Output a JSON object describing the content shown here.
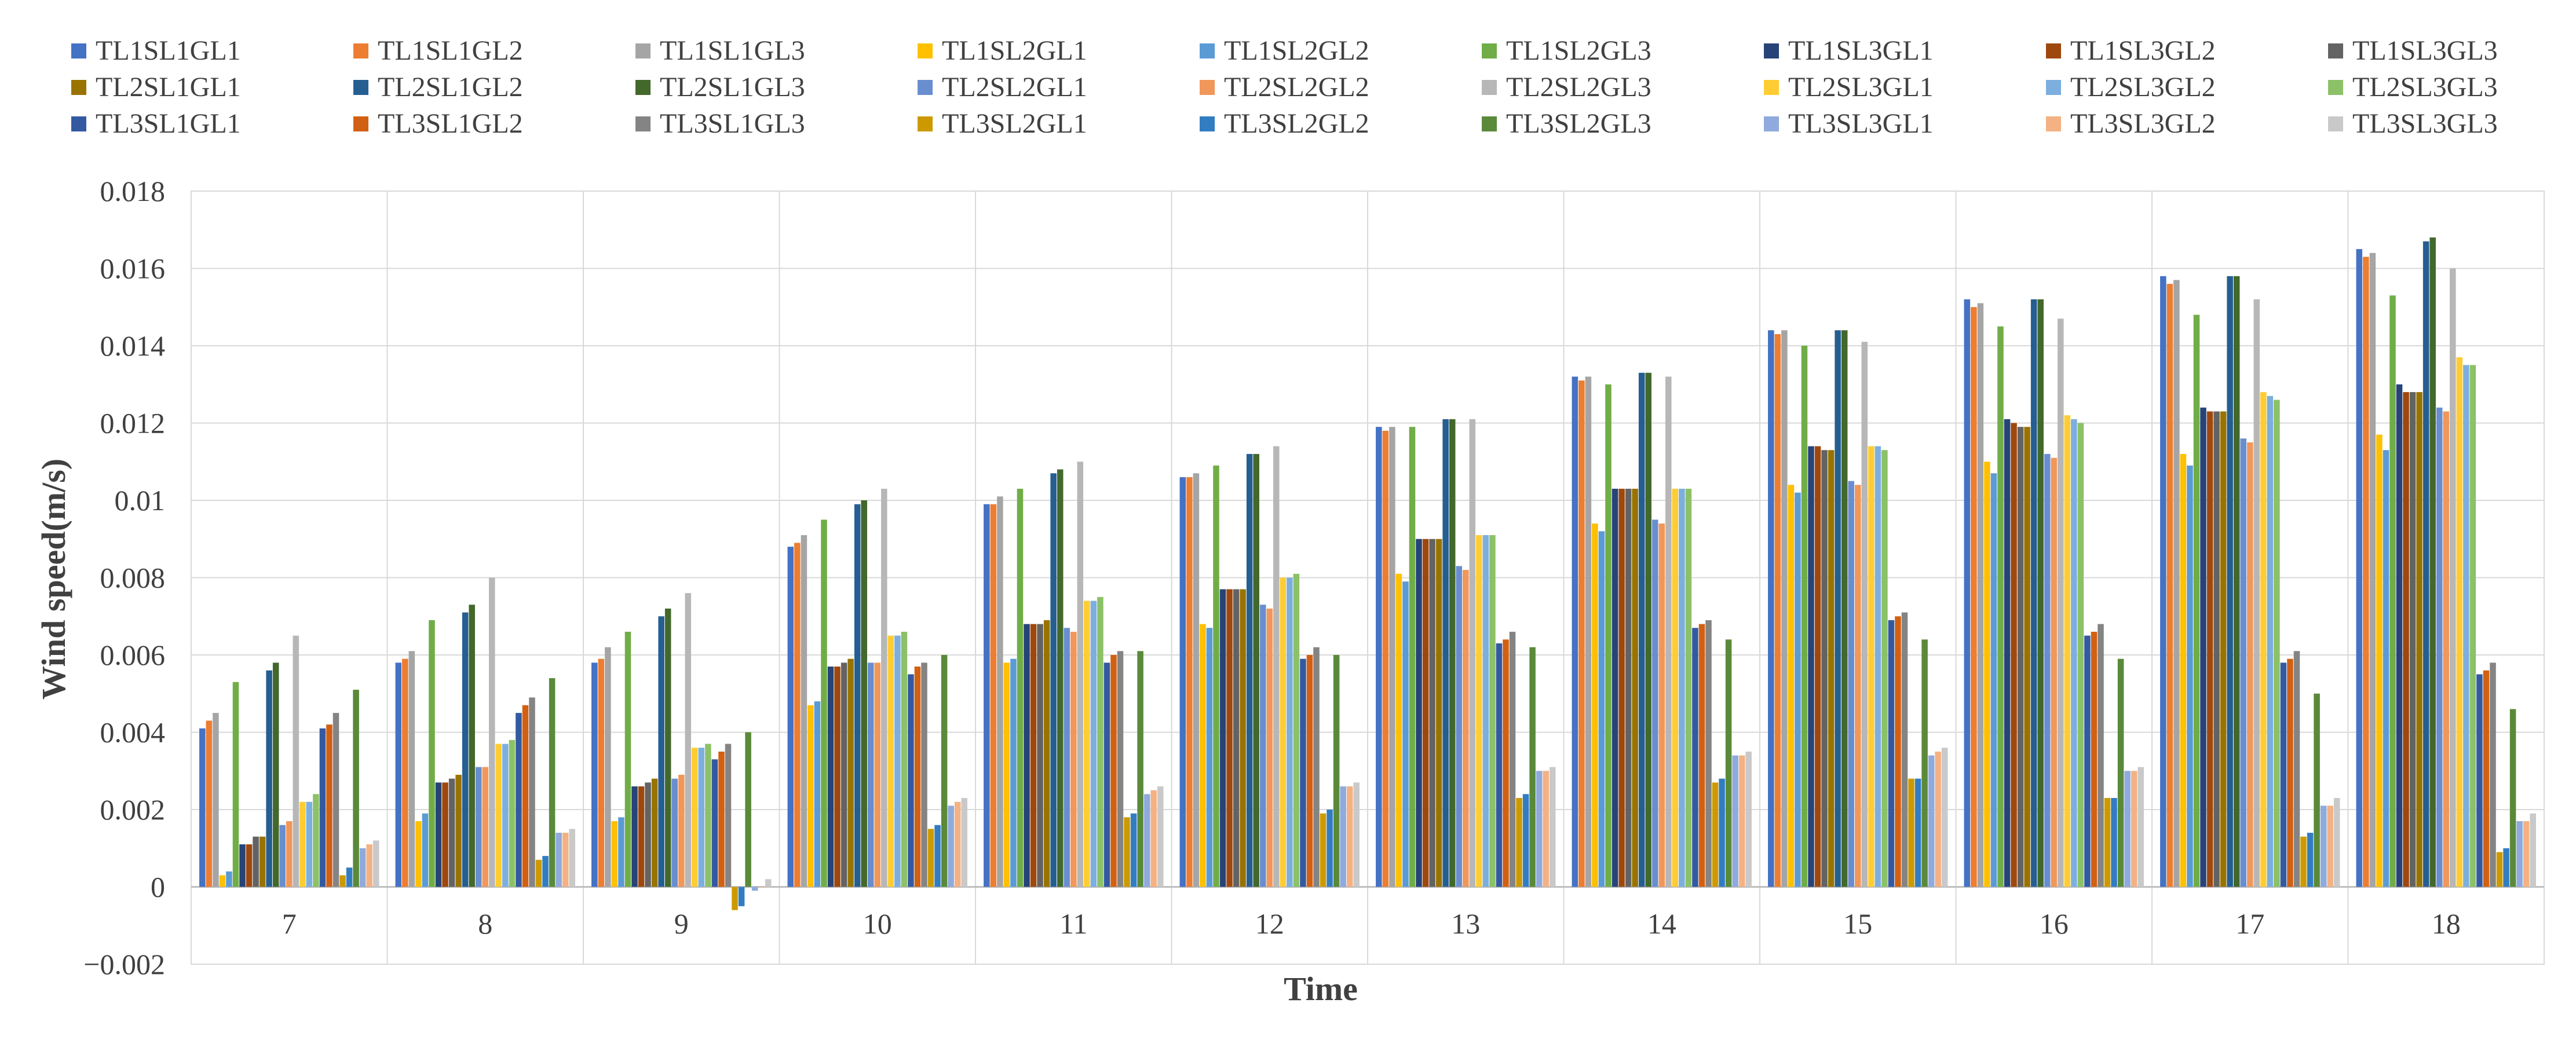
{
  "chart_data": {
    "type": "bar",
    "title": "",
    "xlabel": "Time",
    "ylabel": "Wind speed(m/s)",
    "ylim": [
      -0.002,
      0.018
    ],
    "yticks": [
      -0.002,
      0,
      0.002,
      0.004,
      0.006,
      0.008,
      0.01,
      0.012,
      0.014,
      0.016,
      0.018
    ],
    "ytick_labels": [
      "−0.002",
      "0",
      "0.002",
      "0.004",
      "0.006",
      "0.008",
      "0.01",
      "0.012",
      "0.014",
      "0.016",
      "0.018"
    ],
    "grid": true,
    "legend_position": "top",
    "categories": [
      "7",
      "8",
      "9",
      "10",
      "11",
      "12",
      "13",
      "14",
      "15",
      "16",
      "17",
      "18"
    ],
    "series": [
      {
        "name": "TL1SL1GL1",
        "color": "#4472C4",
        "values": [
          0.0041,
          0.0058,
          0.0058,
          0.0088,
          0.0099,
          0.0106,
          0.0119,
          0.0132,
          0.0144,
          0.0152,
          0.0158,
          0.0165
        ]
      },
      {
        "name": "TL1SL1GL2",
        "color": "#ED7D31",
        "values": [
          0.0043,
          0.0059,
          0.0059,
          0.0089,
          0.0099,
          0.0106,
          0.0118,
          0.0131,
          0.0143,
          0.015,
          0.0156,
          0.0163
        ]
      },
      {
        "name": "TL1SL1GL3",
        "color": "#A5A5A5",
        "values": [
          0.0045,
          0.0061,
          0.0062,
          0.0091,
          0.0101,
          0.0107,
          0.0119,
          0.0132,
          0.0144,
          0.0151,
          0.0157,
          0.0164
        ]
      },
      {
        "name": "TL1SL2GL1",
        "color": "#FFC000",
        "values": [
          0.0003,
          0.0017,
          0.0017,
          0.0047,
          0.0058,
          0.0068,
          0.0081,
          0.0094,
          0.0104,
          0.011,
          0.0112,
          0.0117
        ]
      },
      {
        "name": "TL1SL2GL2",
        "color": "#5B9BD5",
        "values": [
          0.0004,
          0.0019,
          0.0018,
          0.0048,
          0.0059,
          0.0067,
          0.0079,
          0.0092,
          0.0102,
          0.0107,
          0.0109,
          0.0113
        ]
      },
      {
        "name": "TL1SL2GL3",
        "color": "#70AD47",
        "values": [
          0.0053,
          0.0069,
          0.0066,
          0.0095,
          0.0103,
          0.0109,
          0.0119,
          0.013,
          0.014,
          0.0145,
          0.0148,
          0.0153
        ]
      },
      {
        "name": "TL1SL3GL1",
        "color": "#264478",
        "values": [
          0.0011,
          0.0027,
          0.0026,
          0.0057,
          0.0068,
          0.0077,
          0.009,
          0.0103,
          0.0114,
          0.0121,
          0.0124,
          0.013
        ]
      },
      {
        "name": "TL1SL3GL2",
        "color": "#9E480E",
        "values": [
          0.0011,
          0.0027,
          0.0026,
          0.0057,
          0.0068,
          0.0077,
          0.009,
          0.0103,
          0.0114,
          0.012,
          0.0123,
          0.0128
        ]
      },
      {
        "name": "TL1SL3GL3",
        "color": "#636363",
        "values": [
          0.0013,
          0.0028,
          0.0027,
          0.0058,
          0.0068,
          0.0077,
          0.009,
          0.0103,
          0.0113,
          0.0119,
          0.0123,
          0.0128
        ]
      },
      {
        "name": "TL2SL1GL1",
        "color": "#997300",
        "values": [
          0.0013,
          0.0029,
          0.0028,
          0.0059,
          0.0069,
          0.0077,
          0.009,
          0.0103,
          0.0113,
          0.0119,
          0.0123,
          0.0128
        ]
      },
      {
        "name": "TL2SL1GL2",
        "color": "#255E91",
        "values": [
          0.0056,
          0.0071,
          0.007,
          0.0099,
          0.0107,
          0.0112,
          0.0121,
          0.0133,
          0.0144,
          0.0152,
          0.0158,
          0.0167
        ]
      },
      {
        "name": "TL2SL1GL3",
        "color": "#43682B",
        "values": [
          0.0058,
          0.0073,
          0.0072,
          0.01,
          0.0108,
          0.0112,
          0.0121,
          0.0133,
          0.0144,
          0.0152,
          0.0158,
          0.0168
        ]
      },
      {
        "name": "TL2SL2GL1",
        "color": "#698ED0",
        "values": [
          0.0016,
          0.0031,
          0.0028,
          0.0058,
          0.0067,
          0.0073,
          0.0083,
          0.0095,
          0.0105,
          0.0112,
          0.0116,
          0.0124
        ]
      },
      {
        "name": "TL2SL2GL2",
        "color": "#F1975A",
        "values": [
          0.0017,
          0.0031,
          0.0029,
          0.0058,
          0.0066,
          0.0072,
          0.0082,
          0.0094,
          0.0104,
          0.0111,
          0.0115,
          0.0123
        ]
      },
      {
        "name": "TL2SL2GL3",
        "color": "#B7B7B7",
        "values": [
          0.0065,
          0.008,
          0.0076,
          0.0103,
          0.011,
          0.0114,
          0.0121,
          0.0132,
          0.0141,
          0.0147,
          0.0152,
          0.016
        ]
      },
      {
        "name": "TL2SL3GL1",
        "color": "#FFCD33",
        "values": [
          0.0022,
          0.0037,
          0.0036,
          0.0065,
          0.0074,
          0.008,
          0.0091,
          0.0103,
          0.0114,
          0.0122,
          0.0128,
          0.0137
        ]
      },
      {
        "name": "TL2SL3GL2",
        "color": "#7CAFDD",
        "values": [
          0.0022,
          0.0037,
          0.0036,
          0.0065,
          0.0074,
          0.008,
          0.0091,
          0.0103,
          0.0114,
          0.0121,
          0.0127,
          0.0135
        ]
      },
      {
        "name": "TL2SL3GL3",
        "color": "#8CC168",
        "values": [
          0.0024,
          0.0038,
          0.0037,
          0.0066,
          0.0075,
          0.0081,
          0.0091,
          0.0103,
          0.0113,
          0.012,
          0.0126,
          0.0135
        ]
      },
      {
        "name": "TL3SL1GL1",
        "color": "#335AA1",
        "values": [
          0.0041,
          0.0045,
          0.0033,
          0.0055,
          0.0058,
          0.0059,
          0.0063,
          0.0067,
          0.0069,
          0.0065,
          0.0058,
          0.0055
        ]
      },
      {
        "name": "TL3SL1GL2",
        "color": "#D26012",
        "values": [
          0.0042,
          0.0047,
          0.0035,
          0.0057,
          0.006,
          0.006,
          0.0064,
          0.0068,
          0.007,
          0.0066,
          0.0059,
          0.0056
        ]
      },
      {
        "name": "TL3SL1GL3",
        "color": "#848484",
        "values": [
          0.0045,
          0.0049,
          0.0037,
          0.0058,
          0.0061,
          0.0062,
          0.0066,
          0.0069,
          0.0071,
          0.0068,
          0.0061,
          0.0058
        ]
      },
      {
        "name": "TL3SL2GL1",
        "color": "#CC9A00",
        "values": [
          0.0003,
          0.0007,
          -0.0006,
          0.0015,
          0.0018,
          0.0019,
          0.0023,
          0.0027,
          0.0028,
          0.0023,
          0.0013,
          0.0009
        ]
      },
      {
        "name": "TL3SL2GL2",
        "color": "#327DC2",
        "values": [
          0.0005,
          0.0008,
          -0.0005,
          0.0016,
          0.0019,
          0.002,
          0.0024,
          0.0028,
          0.0028,
          0.0023,
          0.0014,
          0.001
        ]
      },
      {
        "name": "TL3SL2GL3",
        "color": "#5A8A39",
        "values": [
          0.0051,
          0.0054,
          0.004,
          0.006,
          0.0061,
          0.006,
          0.0062,
          0.0064,
          0.0064,
          0.0059,
          0.005,
          0.0046
        ]
      },
      {
        "name": "TL3SL3GL1",
        "color": "#8FAADC",
        "values": [
          0.001,
          0.0014,
          -0.0001,
          0.0021,
          0.0024,
          0.0026,
          0.003,
          0.0034,
          0.0034,
          0.003,
          0.0021,
          0.0017
        ]
      },
      {
        "name": "TL3SL3GL2",
        "color": "#F4B183",
        "values": [
          0.0011,
          0.0014,
          0.0,
          0.0022,
          0.0025,
          0.0026,
          0.003,
          0.0034,
          0.0035,
          0.003,
          0.0021,
          0.0017
        ]
      },
      {
        "name": "TL3SL3GL3",
        "color": "#C9C9C9",
        "values": [
          0.0012,
          0.0015,
          0.0002,
          0.0023,
          0.0026,
          0.0027,
          0.0031,
          0.0035,
          0.0036,
          0.0031,
          0.0023,
          0.0019
        ]
      }
    ]
  }
}
